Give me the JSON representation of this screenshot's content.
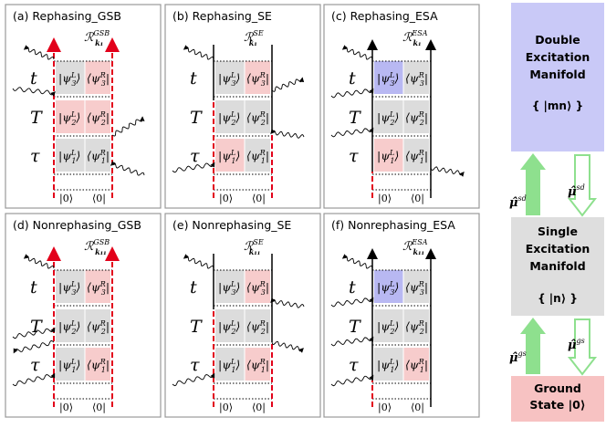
{
  "panels": [
    {
      "title": "(a) Rephasing_GSB",
      "rlabel": "ℛ",
      "sup": "GSB",
      "sub": "k₁",
      "kind": "GSB",
      "rephasing": true,
      "cells": [
        [
          "│ψ₃ᴸ⟩",
          "⟨ψ₃ᴿ│"
        ],
        [
          "│ψ₂ᴸ⟩",
          "⟨ψ₂ᴿ│"
        ],
        [
          "│ψ₁ᴸ⟩",
          "⟨ψ₁ᴿ│"
        ]
      ]
    },
    {
      "title": "(b) Rephasing_SE",
      "rlabel": "ℛ",
      "sup": "SE",
      "sub": "k₁",
      "kind": "SE",
      "rephasing": true
    },
    {
      "title": "(c) Rephasing_ESA",
      "rlabel": "ℛ",
      "sup": "ESA",
      "sub": "k₁",
      "kind": "ESA",
      "rephasing": true
    },
    {
      "title": "(d) Nonrephasing_GSB",
      "rlabel": "ℛ",
      "sup": "GSB",
      "sub": "k₁₁",
      "kind": "GSB",
      "rephasing": false
    },
    {
      "title": "(e) Nonrephasing_SE",
      "rlabel": "ℛ",
      "sup": "SE",
      "sub": "k₁₁",
      "kind": "SE",
      "rephasing": false
    },
    {
      "title": "(f) Nonrephasing_ESA",
      "rlabel": "ℛ",
      "sup": "ESA",
      "sub": "k₁₁",
      "kind": "ESA",
      "rephasing": false
    }
  ],
  "time_labels": [
    "t",
    "T",
    "τ"
  ],
  "ket_labels": [
    "ψ₃",
    "ψ₂",
    "ψ₁"
  ],
  "bottom_ket": "|0⟩",
  "bottom_bra": "⟨0|",
  "energy": {
    "double": "Double Excitation Manifold",
    "double_lines": [
      "Double",
      "Excitation",
      "Manifold"
    ],
    "double_state": "{ |mn⟩ }",
    "single_lines": [
      "Single",
      "Excitation",
      "Manifold"
    ],
    "single_state": "{ |n⟩ }",
    "ground_lines": [
      "Ground",
      "State |0⟩"
    ],
    "mu_sd": "μ̂",
    "sup_sd": "sd",
    "sup_gs": "gs"
  },
  "colors": {
    "red": "#e2001a",
    "gray_cell": "#dcdcdc",
    "pink_cell": "#f7cccc",
    "blue_cell": "#b8b8f2",
    "double_box": "#c9c9f7",
    "single_box": "#dedede",
    "ground_box": "#f7c2c2",
    "green": "#8ee08e"
  }
}
